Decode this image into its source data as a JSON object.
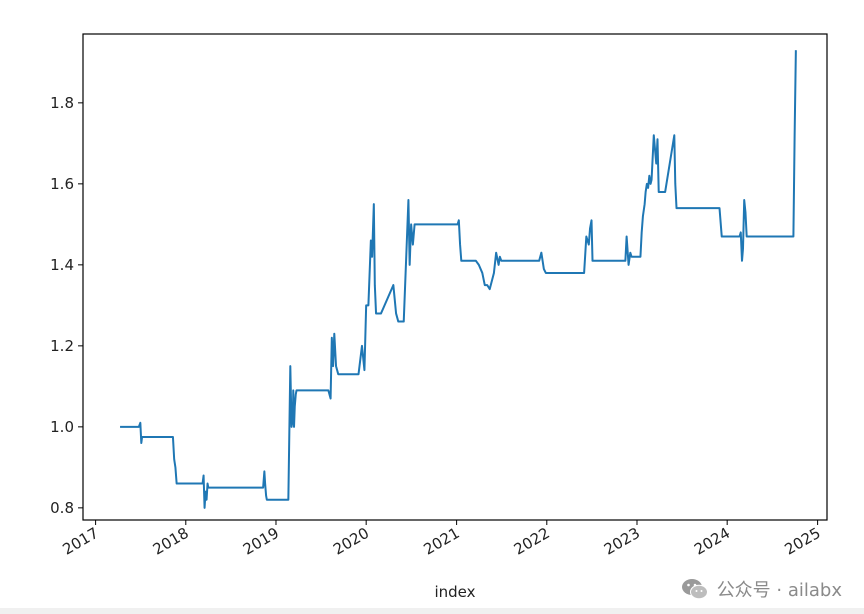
{
  "chart_data": {
    "type": "line",
    "title": "",
    "xlabel": "index",
    "ylabel": "",
    "ylim": [
      0.77,
      1.97
    ],
    "xlim": [
      "2016-11-11",
      "2025-02-08"
    ],
    "yticks": [
      0.8,
      1.0,
      1.2,
      1.4,
      1.6,
      1.8
    ],
    "ytick_labels": [
      "0.8",
      "1.0",
      "1.2",
      "1.4",
      "1.6",
      "1.8"
    ],
    "xticks": [
      "2017-01-01",
      "2018-01-01",
      "2019-01-01",
      "2020-01-01",
      "2021-01-01",
      "2022-01-01",
      "2023-01-01",
      "2024-01-01",
      "2025-01-01"
    ],
    "xtick_labels": [
      "2017",
      "2018",
      "2019",
      "2020",
      "2021",
      "2022",
      "2023",
      "2024",
      "2025"
    ],
    "grid": false,
    "series": [
      {
        "color": "#1f77b4",
        "x": [
          "2017-04-10",
          "2017-06-25",
          "2017-07-01",
          "2017-07-05",
          "2017-07-08",
          "2017-07-15",
          "2017-11-10",
          "2017-11-15",
          "2017-11-20",
          "2017-11-25",
          "2017-11-30",
          "2018-03-10",
          "2018-03-14",
          "2018-03-18",
          "2018-03-22",
          "2018-03-26",
          "2018-03-30",
          "2018-04-02",
          "2018-11-10",
          "2018-11-15",
          "2018-11-18",
          "2018-11-22",
          "2018-11-25",
          "2019-02-20",
          "2019-02-28",
          "2019-03-05",
          "2019-03-10",
          "2019-03-12",
          "2019-03-15",
          "2019-03-18",
          "2019-03-22",
          "2019-03-25",
          "2019-04-01",
          "2019-04-05",
          "2019-04-10",
          "2019-08-01",
          "2019-08-10",
          "2019-08-15",
          "2019-08-20",
          "2019-08-25",
          "2019-09-01",
          "2019-09-10",
          "2019-09-20",
          "2019-12-01",
          "2019-12-15",
          "2019-12-25",
          "2020-01-01",
          "2020-01-10",
          "2020-01-20",
          "2020-01-25",
          "2020-02-01",
          "2020-02-05",
          "2020-02-10",
          "2020-02-15",
          "2020-02-20",
          "2020-03-01",
          "2020-04-20",
          "2020-05-01",
          "2020-05-10",
          "2020-05-20",
          "2020-06-01",
          "2020-06-20",
          "2020-06-25",
          "2020-07-01",
          "2020-07-08",
          "2020-07-15",
          "2020-07-20",
          "2020-07-25",
          "2020-08-01",
          "2021-01-05",
          "2021-01-10",
          "2021-01-15",
          "2021-01-20",
          "2021-03-20",
          "2021-04-01",
          "2021-04-15",
          "2021-04-25",
          "2021-05-05",
          "2021-05-15",
          "2021-06-01",
          "2021-06-10",
          "2021-06-20",
          "2021-06-25",
          "2021-07-01",
          "2021-12-01",
          "2021-12-10",
          "2021-12-20",
          "2021-12-28",
          "2022-06-01",
          "2022-06-10",
          "2022-06-20",
          "2022-06-25",
          "2022-07-01",
          "2022-07-05",
          "2022-11-15",
          "2022-11-20",
          "2022-11-28",
          "2022-12-05",
          "2022-12-10",
          "2023-01-15",
          "2023-01-20",
          "2023-01-25",
          "2023-02-01",
          "2023-02-05",
          "2023-02-10",
          "2023-02-15",
          "2023-02-20",
          "2023-02-25",
          "2023-03-01",
          "2023-03-10",
          "2023-03-20",
          "2023-03-25",
          "2023-03-30",
          "2023-04-05",
          "2023-04-10",
          "2023-04-15",
          "2023-04-20",
          "2023-04-25",
          "2023-06-01",
          "2023-06-05",
          "2023-06-10",
          "2023-06-15",
          "2023-06-20",
          "2023-12-01",
          "2023-12-10",
          "2024-02-20",
          "2024-02-25",
          "2024-03-01",
          "2024-03-05",
          "2024-03-10",
          "2024-03-15",
          "2024-03-20",
          "2024-03-25",
          "2024-09-25",
          "2024-09-30",
          "2024-10-05"
        ],
        "values": [
          1.0,
          1.0,
          1.01,
          0.96,
          0.975,
          0.975,
          0.975,
          0.92,
          0.9,
          0.86,
          0.86,
          0.86,
          0.88,
          0.8,
          0.84,
          0.82,
          0.86,
          0.85,
          0.85,
          0.89,
          0.86,
          0.83,
          0.82,
          0.82,
          1.15,
          1.0,
          1.02,
          1.09,
          1.0,
          1.05,
          1.08,
          1.09,
          1.09,
          1.09,
          1.09,
          1.09,
          1.07,
          1.22,
          1.15,
          1.23,
          1.15,
          1.13,
          1.13,
          1.13,
          1.2,
          1.14,
          1.3,
          1.3,
          1.46,
          1.42,
          1.55,
          1.35,
          1.28,
          1.28,
          1.28,
          1.28,
          1.35,
          1.28,
          1.26,
          1.26,
          1.26,
          1.56,
          1.4,
          1.5,
          1.45,
          1.5,
          1.5,
          1.5,
          1.5,
          1.5,
          1.51,
          1.45,
          1.41,
          1.41,
          1.4,
          1.38,
          1.35,
          1.35,
          1.34,
          1.38,
          1.43,
          1.4,
          1.42,
          1.41,
          1.41,
          1.43,
          1.39,
          1.38,
          1.38,
          1.47,
          1.45,
          1.49,
          1.51,
          1.41,
          1.41,
          1.47,
          1.4,
          1.43,
          1.42,
          1.42,
          1.48,
          1.52,
          1.55,
          1.58,
          1.6,
          1.59,
          1.62,
          1.6,
          1.61,
          1.72,
          1.65,
          1.71,
          1.58,
          1.58,
          1.58,
          1.58,
          1.58,
          1.58,
          1.72,
          1.6,
          1.54,
          1.54,
          1.54,
          1.54,
          1.47,
          1.47,
          1.48,
          1.41,
          1.44,
          1.56,
          1.53,
          1.47,
          1.47,
          1.47,
          1.72,
          1.93
        ]
      }
    ]
  },
  "watermark": {
    "text": "公众号 · ailabx",
    "icon": "wechat-icon"
  }
}
